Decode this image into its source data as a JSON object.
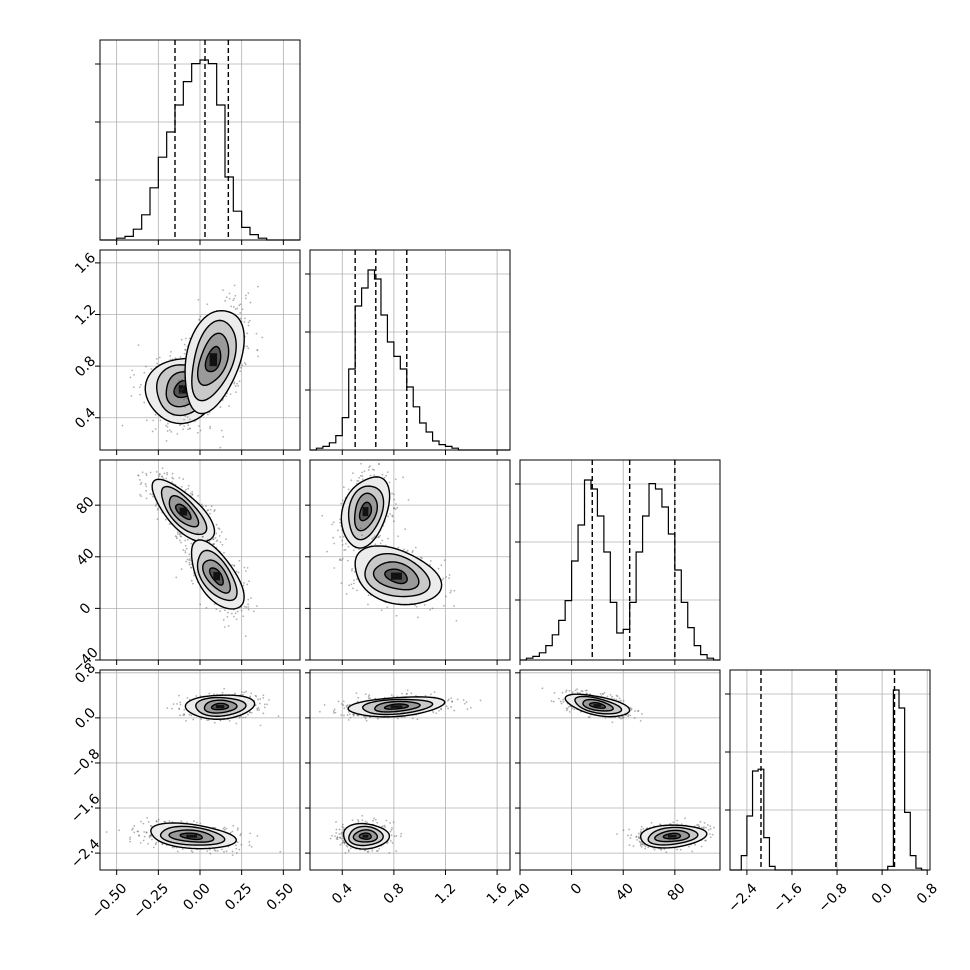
{
  "chart_data": {
    "type": "corner",
    "grid": true,
    "parameters": [
      {
        "index": 0,
        "range": [
          -0.6,
          0.6
        ],
        "ticks": [
          "−0.50",
          "−0.25",
          "0.00",
          "0.25",
          "0.50"
        ],
        "tick_values": [
          -0.5,
          -0.25,
          0.0,
          0.25,
          0.5
        ],
        "quantiles": [
          -0.15,
          0.03,
          0.17
        ]
      },
      {
        "index": 1,
        "range": [
          0.15,
          1.7
        ],
        "ticks": [
          "0.4",
          "0.8",
          "1.2",
          "1.6"
        ],
        "tick_values": [
          0.4,
          0.8,
          1.2,
          1.6
        ],
        "quantiles": [
          0.5,
          0.66,
          0.9
        ]
      },
      {
        "index": 2,
        "range": [
          -40,
          115
        ],
        "ticks": [
          "−40",
          "0",
          "40",
          "80"
        ],
        "tick_values": [
          -40,
          0,
          40,
          80
        ],
        "quantiles": [
          16,
          45,
          80
        ]
      },
      {
        "index": 3,
        "range": [
          -2.7,
          0.85
        ],
        "ticks": [
          "−2.4",
          "−1.6",
          "−0.8",
          "0.0",
          "0.8"
        ],
        "tick_values": [
          -2.4,
          -1.6,
          -0.8,
          0.0,
          0.8
        ],
        "quantiles": [
          -2.15,
          -0.82,
          0.22
        ]
      }
    ],
    "histograms": [
      {
        "param": 0,
        "bin_edges": [
          -0.6,
          -0.55,
          -0.5,
          -0.45,
          -0.4,
          -0.35,
          -0.3,
          -0.25,
          -0.2,
          -0.15,
          -0.1,
          -0.05,
          0.0,
          0.05,
          0.1,
          0.15,
          0.2,
          0.25,
          0.3,
          0.35,
          0.4,
          0.45,
          0.5,
          0.55,
          0.6
        ],
        "counts": [
          0,
          0,
          1,
          2,
          6,
          14,
          29,
          46,
          60,
          75,
          88,
          98,
          100,
          98,
          75,
          35,
          16,
          7,
          3,
          1,
          0,
          0,
          0,
          0
        ]
      },
      {
        "param": 1,
        "bin_edges": [
          0.15,
          0.2,
          0.25,
          0.3,
          0.35,
          0.4,
          0.45,
          0.5,
          0.55,
          0.6,
          0.65,
          0.7,
          0.75,
          0.8,
          0.85,
          0.9,
          0.95,
          1.0,
          1.05,
          1.1,
          1.15,
          1.2,
          1.25,
          1.3,
          1.35,
          1.4,
          1.45,
          1.5,
          1.55,
          1.6,
          1.65,
          1.7
        ],
        "counts": [
          0,
          1,
          2,
          4,
          8,
          18,
          45,
          80,
          90,
          100,
          95,
          75,
          60,
          52,
          45,
          35,
          24,
          15,
          10,
          5,
          3,
          2,
          1,
          0,
          0,
          0,
          0,
          0,
          0,
          0,
          0
        ]
      },
      {
        "param": 2,
        "bin_edges": [
          -40,
          -35,
          -30,
          -25,
          -20,
          -15,
          -10,
          -5,
          0,
          5,
          10,
          15,
          20,
          25,
          30,
          35,
          40,
          45,
          50,
          55,
          60,
          65,
          70,
          75,
          80,
          85,
          90,
          95,
          100,
          105,
          110,
          115
        ],
        "counts": [
          0,
          1,
          2,
          4,
          8,
          14,
          22,
          33,
          55,
          75,
          100,
          95,
          80,
          60,
          32,
          15,
          17,
          32,
          60,
          80,
          98,
          95,
          85,
          70,
          50,
          32,
          18,
          8,
          3,
          1,
          0
        ]
      },
      {
        "param": 3,
        "bin_edges": [
          -2.7,
          -2.6,
          -2.5,
          -2.4,
          -2.3,
          -2.2,
          -2.1,
          -2.0,
          -1.9,
          -1.8,
          -1.7,
          -1.6,
          -1.5,
          -1.4,
          -1.3,
          -1.2,
          -1.1,
          -1.0,
          -0.9,
          -0.8,
          -0.7,
          -0.6,
          -0.5,
          -0.4,
          -0.3,
          -0.2,
          -0.1,
          0.0,
          0.1,
          0.2,
          0.3,
          0.4,
          0.5,
          0.6,
          0.7,
          0.8
        ],
        "counts": [
          0,
          0,
          8,
          30,
          55,
          56,
          18,
          2,
          0,
          0,
          0,
          0,
          0,
          0,
          0,
          0,
          0,
          0,
          0,
          0,
          0,
          0,
          0,
          0,
          0,
          0,
          0,
          0,
          2,
          100,
          90,
          32,
          8,
          1,
          0
        ]
      }
    ],
    "scatter_panels": [
      {
        "x_param": 0,
        "y_param": 1,
        "clusters": [
          {
            "center": [
              -0.1,
              0.62
            ],
            "spread": [
              0.11,
              0.13
            ],
            "corr": 0.1
          },
          {
            "center": [
              0.08,
              0.85
            ],
            "spread": [
              0.09,
              0.2
            ],
            "corr": 0.4
          }
        ]
      },
      {
        "x_param": 0,
        "y_param": 2,
        "clusters": [
          {
            "center": [
              -0.1,
              75
            ],
            "spread": [
              0.09,
              12
            ],
            "corr": -0.7
          },
          {
            "center": [
              0.1,
              25
            ],
            "spread": [
              0.08,
              13
            ],
            "corr": -0.6
          }
        ]
      },
      {
        "x_param": 1,
        "y_param": 2,
        "clusters": [
          {
            "center": [
              0.58,
              75
            ],
            "spread": [
              0.09,
              14
            ],
            "corr": 0.3
          },
          {
            "center": [
              0.82,
              25
            ],
            "spread": [
              0.17,
              11
            ],
            "corr": -0.3
          }
        ]
      },
      {
        "x_param": 0,
        "y_param": 3,
        "clusters": [
          {
            "center": [
              0.12,
              0.2
            ],
            "spread": [
              0.1,
              0.11
            ],
            "corr": 0.1
          },
          {
            "center": [
              -0.05,
              -2.1
            ],
            "spread": [
              0.13,
              0.11
            ],
            "corr": -0.3
          }
        ]
      },
      {
        "x_param": 1,
        "y_param": 3,
        "clusters": [
          {
            "center": [
              0.82,
              0.2
            ],
            "spread": [
              0.18,
              0.09
            ],
            "corr": 0.3
          },
          {
            "center": [
              0.58,
              -2.1
            ],
            "spread": [
              0.09,
              0.11
            ],
            "corr": 0.0
          }
        ]
      },
      {
        "x_param": 2,
        "y_param": 3,
        "clusters": [
          {
            "center": [
              20,
              0.22
            ],
            "spread": [
              12,
              0.1
            ],
            "corr": -0.5
          },
          {
            "center": [
              78,
              -2.1
            ],
            "spread": [
              13,
              0.1
            ],
            "corr": 0.2
          }
        ]
      }
    ]
  }
}
